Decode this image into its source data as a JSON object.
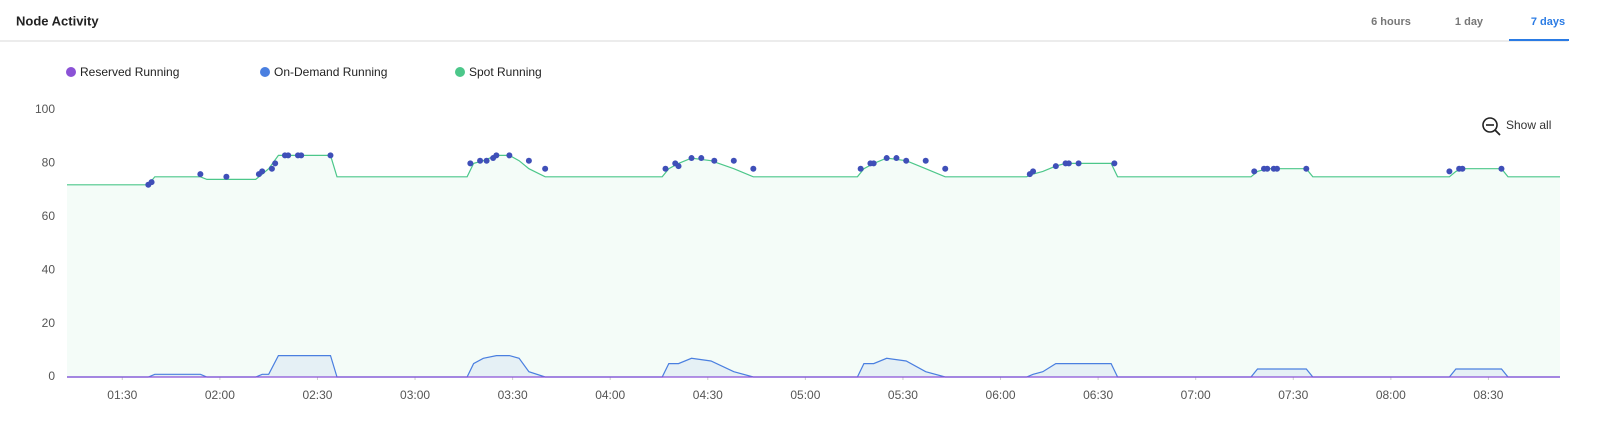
{
  "header": {
    "title": "Node Activity",
    "tabs": [
      "6 hours",
      "1 day",
      "7 days"
    ],
    "active_tab": 2
  },
  "show_all": "Show all",
  "chart_data": {
    "type": "area",
    "x": [
      73,
      98,
      100,
      114,
      116,
      131,
      133,
      135,
      138,
      154,
      156,
      196,
      198,
      201,
      205,
      209,
      212,
      215,
      220,
      256,
      258,
      261,
      265,
      271,
      278,
      284,
      316,
      318,
      321,
      325,
      331,
      337,
      343,
      368,
      370,
      373,
      377,
      380,
      394,
      396,
      437,
      439,
      442,
      454,
      456,
      498,
      500,
      502,
      514,
      516,
      532
    ],
    "series": [
      {
        "name": "Reserved Running",
        "color": "#8b52d6",
        "values": [
          0,
          0,
          0,
          0,
          0,
          0,
          0,
          0,
          0,
          0,
          0,
          0,
          0,
          0,
          0,
          0,
          0,
          0,
          0,
          0,
          0,
          0,
          0,
          0,
          0,
          0,
          0,
          0,
          0,
          0,
          0,
          0,
          0,
          0,
          0,
          0,
          0,
          0,
          0,
          0,
          0,
          0,
          0,
          0,
          0,
          0,
          0,
          0,
          0,
          0,
          0
        ]
      },
      {
        "name": "On-Demand Running",
        "color": "#4a7fe0",
        "values": [
          0,
          0,
          1,
          1,
          0,
          0,
          1,
          1,
          8,
          8,
          0,
          0,
          5,
          7,
          8,
          8,
          7,
          2,
          0,
          0,
          5,
          5,
          7,
          6,
          2,
          0,
          0,
          5,
          5,
          7,
          6,
          2,
          0,
          0,
          1,
          2,
          5,
          5,
          5,
          0,
          0,
          3,
          3,
          3,
          0,
          0,
          3,
          3,
          3,
          0,
          0
        ]
      },
      {
        "name": "Spot Running",
        "color": "#4cc78a",
        "values": [
          72,
          72,
          75,
          75,
          74,
          74,
          76,
          78,
          83,
          83,
          75,
          75,
          80,
          81,
          83,
          83,
          81,
          78,
          75,
          75,
          78,
          80,
          82,
          81,
          78,
          75,
          75,
          78,
          80,
          82,
          81,
          78,
          75,
          75,
          76,
          77,
          79,
          80,
          80,
          75,
          75,
          77,
          78,
          78,
          75,
          75,
          77,
          78,
          78,
          75,
          75
        ]
      }
    ],
    "markers": {
      "color": "#3f4fb8",
      "x": [
        98,
        99,
        114,
        122,
        132,
        133,
        136,
        137,
        140,
        141,
        144,
        145,
        154,
        197,
        200,
        202,
        204,
        205,
        209,
        215,
        220,
        257,
        260,
        261,
        265,
        268,
        272,
        278,
        284,
        317,
        320,
        321,
        325,
        328,
        331,
        337,
        343,
        369,
        370,
        377,
        380,
        381,
        384,
        395,
        438,
        441,
        442,
        444,
        445,
        454,
        498,
        501,
        502,
        514
      ],
      "y": [
        72,
        73,
        76,
        75,
        76,
        77,
        78,
        80,
        83,
        83,
        83,
        83,
        83,
        80,
        81,
        81,
        82,
        83,
        83,
        81,
        78,
        78,
        80,
        79,
        82,
        82,
        81,
        81,
        78,
        78,
        80,
        80,
        82,
        82,
        81,
        81,
        78,
        76,
        77,
        79,
        80,
        80,
        80,
        80,
        77,
        78,
        78,
        78,
        78,
        78,
        77,
        78,
        78,
        78
      ]
    },
    "xlim": [
      73,
      532
    ],
    "xticks": [
      {
        "value": 90,
        "label": "01:30"
      },
      {
        "value": 120,
        "label": "02:00"
      },
      {
        "value": 150,
        "label": "02:30"
      },
      {
        "value": 180,
        "label": "03:00"
      },
      {
        "value": 210,
        "label": "03:30"
      },
      {
        "value": 240,
        "label": "04:00"
      },
      {
        "value": 270,
        "label": "04:30"
      },
      {
        "value": 300,
        "label": "05:00"
      },
      {
        "value": 330,
        "label": "05:30"
      },
      {
        "value": 360,
        "label": "06:00"
      },
      {
        "value": 390,
        "label": "06:30"
      },
      {
        "value": 420,
        "label": "07:00"
      },
      {
        "value": 450,
        "label": "07:30"
      },
      {
        "value": 480,
        "label": "08:00"
      },
      {
        "value": 510,
        "label": "08:30"
      }
    ],
    "ylim": [
      0,
      100
    ],
    "yticks": [
      0,
      20,
      40,
      60,
      80,
      100
    ],
    "grid": false
  }
}
